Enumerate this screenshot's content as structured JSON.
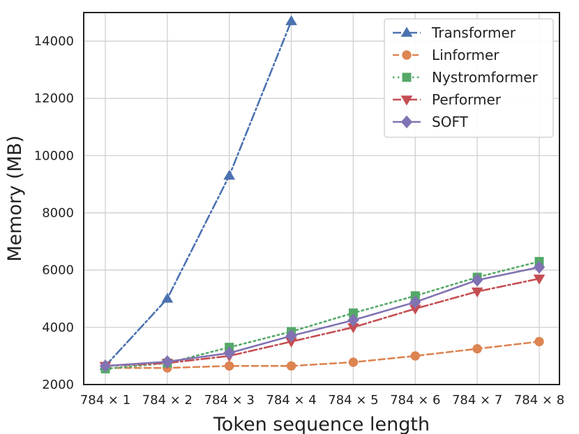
{
  "chart_data": {
    "type": "line",
    "xlabel": "Token sequence length",
    "ylabel": "Memory (MB)",
    "categories": [
      "784 × 1",
      "784 × 2",
      "784 × 3",
      "784 × 4",
      "784 × 5",
      "784 × 6",
      "784 × 7",
      "784 × 8"
    ],
    "ylim": [
      2000,
      15000
    ],
    "yticks": [
      2000,
      4000,
      6000,
      8000,
      10000,
      12000,
      14000
    ],
    "grid": true,
    "legend_position": "top-right",
    "series": [
      {
        "name": "Transformer",
        "color": "#4c72b0",
        "marker": "triangle-up",
        "line_style": "dashdot",
        "values": [
          2650,
          5000,
          9300,
          14700,
          null,
          null,
          null,
          null
        ]
      },
      {
        "name": "Linformer",
        "color": "#dd8452",
        "marker": "circle",
        "line_style": "dashed",
        "values": [
          2580,
          2580,
          2650,
          2650,
          2780,
          3000,
          3250,
          3500
        ]
      },
      {
        "name": "Nystromformer",
        "color": "#55a868",
        "marker": "square",
        "line_style": "dotted",
        "values": [
          2550,
          2750,
          3300,
          3850,
          4500,
          5100,
          5750,
          6300
        ]
      },
      {
        "name": "Performer",
        "color": "#c44e52",
        "marker": "triangle-down",
        "line_style": "dashdot",
        "values": [
          2650,
          2750,
          3000,
          3500,
          4000,
          4650,
          5250,
          5700
        ]
      },
      {
        "name": "SOFT",
        "color": "#8172b3",
        "marker": "diamond",
        "line_style": "solid",
        "values": [
          2650,
          2800,
          3100,
          3700,
          4250,
          4880,
          5650,
          6100
        ]
      }
    ]
  }
}
